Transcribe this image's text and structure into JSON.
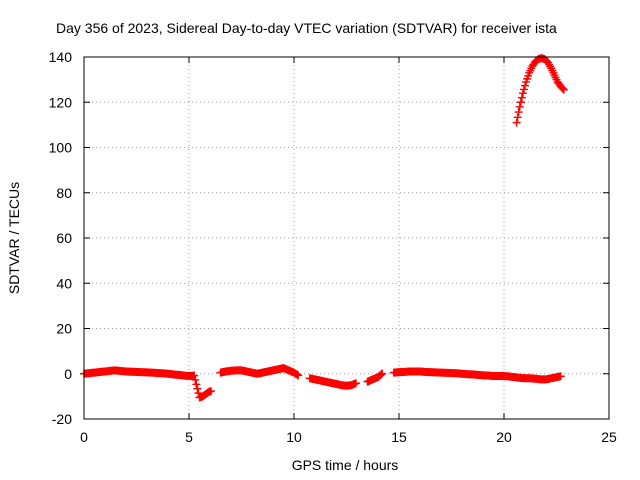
{
  "chart_data": {
    "type": "scatter",
    "title": "Day 356 of 2023, Sidereal Day-to-day VTEC variation (SDTVAR) for receiver ista",
    "xlabel": "GPS time / hours",
    "ylabel": "SDTVAR / TECUs",
    "xlim": [
      0,
      25
    ],
    "ylim": [
      -20,
      140
    ],
    "xticks": [
      0,
      5,
      10,
      15,
      20,
      25
    ],
    "yticks": [
      -20,
      0,
      20,
      40,
      60,
      80,
      100,
      120,
      140
    ],
    "grid": true,
    "marker": "plus",
    "color": "#ff0000",
    "series": [
      {
        "name": "SDTVAR",
        "x": [
          0.0,
          0.25,
          0.5,
          0.75,
          1.0,
          1.25,
          1.5,
          1.75,
          2.0,
          2.25,
          2.5,
          2.75,
          3.0,
          3.25,
          3.5,
          3.75,
          4.0,
          4.25,
          4.5,
          4.75,
          5.0,
          5.25,
          5.5,
          5.65,
          5.8,
          5.95,
          6.1,
          6.5,
          6.75,
          7.0,
          7.25,
          7.5,
          7.75,
          8.0,
          8.25,
          8.5,
          8.75,
          9.0,
          9.25,
          9.5,
          9.75,
          10.0,
          10.25,
          10.75,
          11.0,
          11.25,
          11.5,
          11.75,
          12.0,
          12.25,
          12.5,
          12.75,
          13.0,
          13.5,
          13.75,
          14.0,
          14.25,
          14.75,
          15.0,
          15.25,
          15.5,
          15.75,
          16.0,
          16.25,
          16.5,
          16.75,
          17.0,
          17.25,
          17.5,
          17.75,
          18.0,
          18.25,
          18.5,
          18.75,
          19.0,
          19.25,
          19.5,
          19.75,
          20.0,
          20.25,
          20.5,
          20.75,
          21.0,
          21.25,
          21.5,
          21.75,
          22.0,
          22.25,
          22.5,
          22.75,
          20.6,
          20.75,
          20.9,
          21.05,
          21.2,
          21.35,
          21.5,
          21.65,
          21.8,
          21.95,
          22.1,
          22.25,
          22.4,
          22.55,
          22.7,
          22.85
        ],
        "y": [
          0.0,
          0.3,
          0.5,
          0.8,
          1.0,
          1.3,
          1.5,
          1.2,
          1.0,
          0.9,
          0.8,
          0.7,
          0.6,
          0.5,
          0.3,
          0.2,
          0.0,
          -0.3,
          -0.5,
          -0.8,
          -1.0,
          -0.8,
          -10.5,
          -10.0,
          -9.0,
          -8.0,
          -7.5,
          0.5,
          1.0,
          1.3,
          1.5,
          1.5,
          1.0,
          0.5,
          0.0,
          0.5,
          1.0,
          1.5,
          2.0,
          2.5,
          1.5,
          0.5,
          -1.0,
          -2.0,
          -2.5,
          -3.0,
          -3.5,
          -4.0,
          -4.5,
          -5.0,
          -5.3,
          -5.0,
          -4.0,
          -3.5,
          -2.5,
          -1.5,
          0.5,
          0.5,
          0.7,
          0.8,
          1.0,
          1.0,
          1.0,
          0.8,
          0.7,
          0.6,
          0.5,
          0.4,
          0.3,
          0.2,
          0.0,
          -0.2,
          -0.3,
          -0.5,
          -0.7,
          -0.8,
          -1.0,
          -1.0,
          -1.0,
          -1.2,
          -1.5,
          -1.8,
          -2.0,
          -2.0,
          -2.2,
          -2.5,
          -2.5,
          -2.0,
          -1.5,
          -1.0,
          111.0,
          118.0,
          124.0,
          129.0,
          133.0,
          136.0,
          138.0,
          139.2,
          139.5,
          139.0,
          137.5,
          135.0,
          132.0,
          129.0,
          127.0,
          125.5
        ]
      }
    ]
  }
}
